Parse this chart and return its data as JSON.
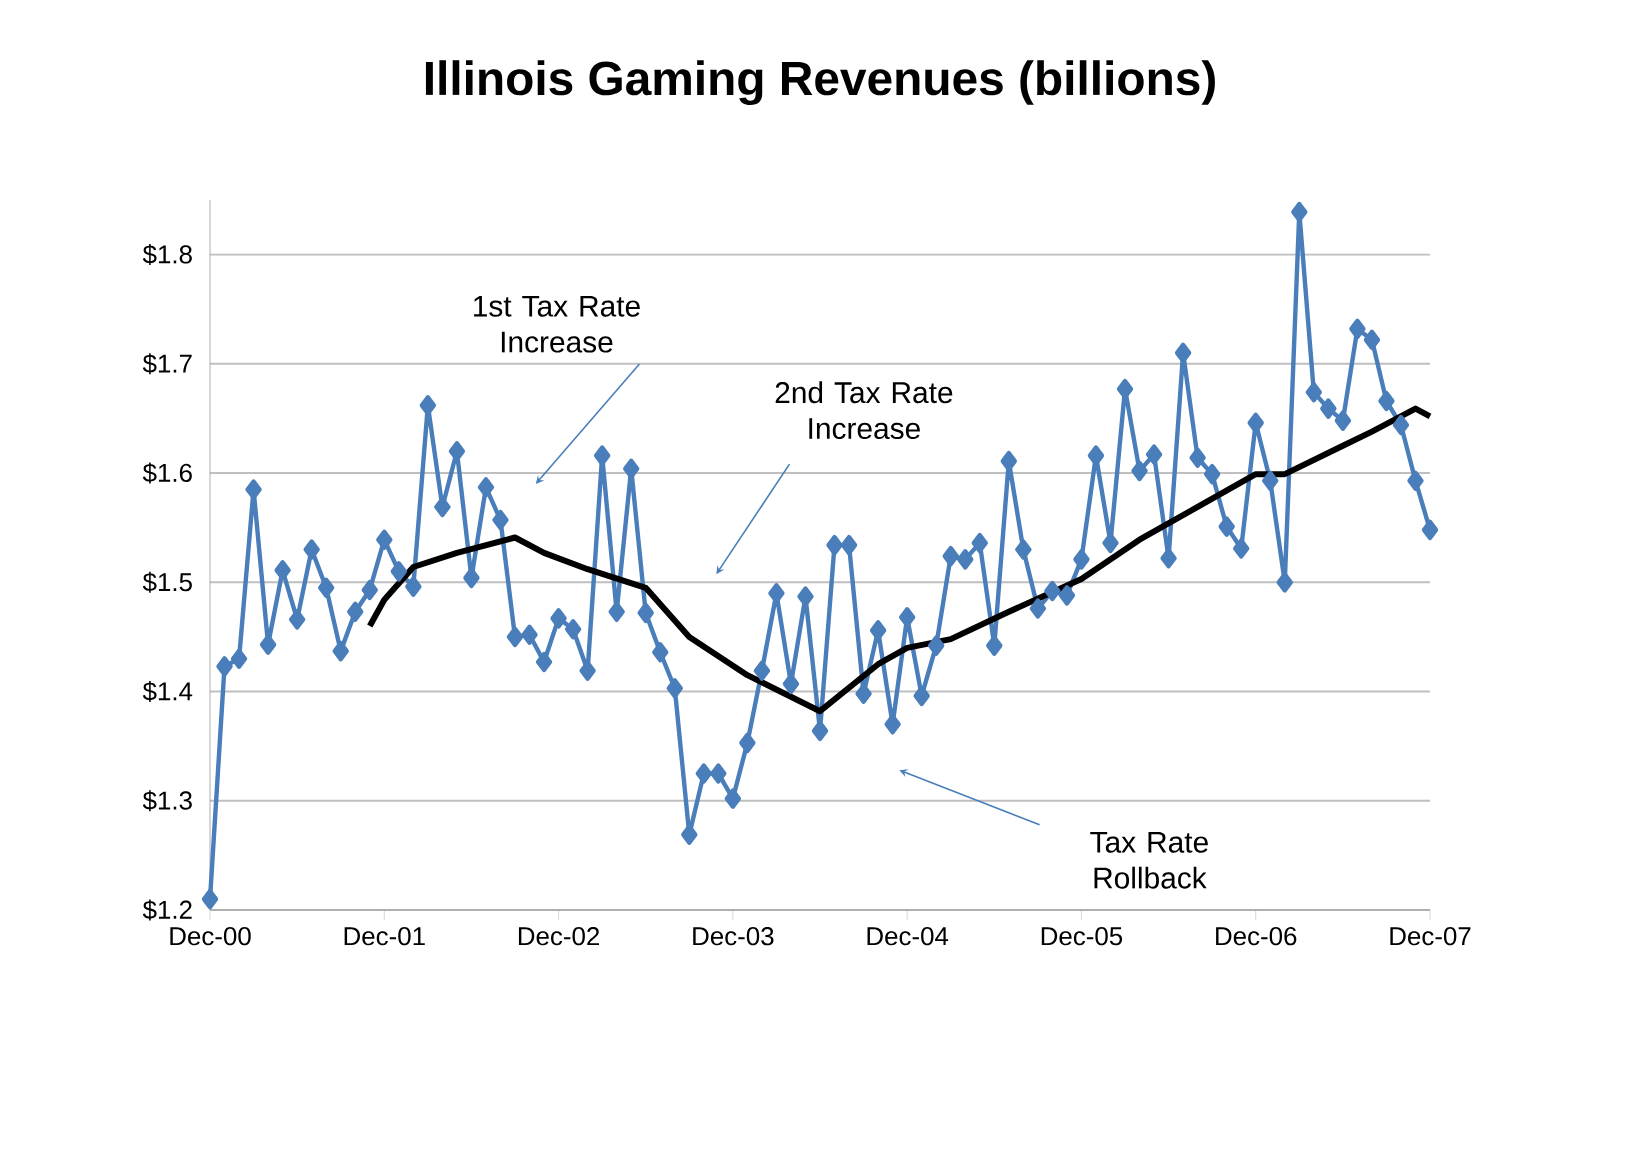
{
  "chart_data": {
    "type": "line",
    "title": "Illinois Gaming Revenues (billions)",
    "x": [
      "2000-12",
      "2001-01",
      "2001-02",
      "2001-03",
      "2001-04",
      "2001-05",
      "2001-06",
      "2001-07",
      "2001-08",
      "2001-09",
      "2001-10",
      "2001-11",
      "2001-12",
      "2002-01",
      "2002-02",
      "2002-03",
      "2002-04",
      "2002-05",
      "2002-06",
      "2002-07",
      "2002-08",
      "2002-09",
      "2002-10",
      "2002-11",
      "2002-12",
      "2003-01",
      "2003-02",
      "2003-03",
      "2003-04",
      "2003-05",
      "2003-06",
      "2003-07",
      "2003-08",
      "2003-09",
      "2003-10",
      "2003-11",
      "2003-12",
      "2004-01",
      "2004-02",
      "2004-03",
      "2004-04",
      "2004-05",
      "2004-06",
      "2004-07",
      "2004-08",
      "2004-09",
      "2004-10",
      "2004-11",
      "2004-12",
      "2005-01",
      "2005-02",
      "2005-03",
      "2005-04",
      "2005-05",
      "2005-06",
      "2005-07",
      "2005-08",
      "2005-09",
      "2005-10",
      "2005-11",
      "2005-12",
      "2006-01",
      "2006-02",
      "2006-03",
      "2006-04",
      "2006-05",
      "2006-06",
      "2006-07",
      "2006-08",
      "2006-09",
      "2006-10",
      "2006-11",
      "2006-12",
      "2007-01",
      "2007-02",
      "2007-03",
      "2007-04",
      "2007-05",
      "2007-06",
      "2007-07",
      "2007-08",
      "2007-09",
      "2007-10",
      "2007-11",
      "2007-12"
    ],
    "xlim": [
      "2000-12",
      "2007-12"
    ],
    "xticks": [
      {
        "value": "2000-12",
        "label": "Dec-00"
      },
      {
        "value": "2001-12",
        "label": "Dec-01"
      },
      {
        "value": "2002-12",
        "label": "Dec-02"
      },
      {
        "value": "2003-12",
        "label": "Dec-03"
      },
      {
        "value": "2004-12",
        "label": "Dec-04"
      },
      {
        "value": "2005-12",
        "label": "Dec-05"
      },
      {
        "value": "2006-12",
        "label": "Dec-06"
      },
      {
        "value": "2007-12",
        "label": "Dec-07"
      }
    ],
    "ylim": [
      1.2,
      1.85
    ],
    "yticks": [
      {
        "value": 1.2,
        "label": "$1.2"
      },
      {
        "value": 1.3,
        "label": "$1.3"
      },
      {
        "value": 1.4,
        "label": "$1.4"
      },
      {
        "value": 1.5,
        "label": "$1.5"
      },
      {
        "value": 1.6,
        "label": "$1.6"
      },
      {
        "value": 1.7,
        "label": "$1.7"
      },
      {
        "value": 1.8,
        "label": "$1.8"
      }
    ],
    "grid": "y",
    "line_style": "solid",
    "series": [
      {
        "color": "#4a7ebb",
        "marker": "diamond",
        "values": [
          1.21,
          1.423,
          1.43,
          1.585,
          1.443,
          1.511,
          1.466,
          1.53,
          1.495,
          1.437,
          1.473,
          1.493,
          1.539,
          1.51,
          1.496,
          1.662,
          1.569,
          1.62,
          1.504,
          1.587,
          1.557,
          1.45,
          1.452,
          1.427,
          1.467,
          1.457,
          1.419,
          1.616,
          1.473,
          1.604,
          1.472,
          1.436,
          1.403,
          1.269,
          1.325,
          1.325,
          1.302,
          1.353,
          1.419,
          1.49,
          1.407,
          1.487,
          1.364,
          1.534,
          1.534,
          1.398,
          1.456,
          1.37,
          1.468,
          1.396,
          1.442,
          1.524,
          1.521,
          1.536,
          1.442,
          1.611,
          1.53,
          1.476,
          1.492,
          1.488,
          1.521,
          1.616,
          1.536,
          1.677,
          1.602,
          1.617,
          1.522,
          1.71,
          1.614,
          1.599,
          1.551,
          1.531,
          1.646,
          1.593,
          1.5,
          1.839,
          1.674,
          1.659,
          1.648,
          1.732,
          1.722,
          1.666,
          1.644,
          1.593,
          1.548
        ]
      },
      {
        "color": "#000000",
        "marker": "none",
        "x": [
          "2001-11",
          "2001-12",
          "2002-02",
          "2002-05",
          "2002-09",
          "2002-11",
          "2003-02",
          "2003-06",
          "2003-09",
          "2004-01",
          "2004-06",
          "2004-10",
          "2004-12",
          "2005-03",
          "2005-07",
          "2005-12",
          "2006-04",
          "2006-08",
          "2006-12",
          "2007-02",
          "2007-06",
          "2007-08",
          "2007-11",
          "2007-12"
        ],
        "values": [
          1.46,
          1.484,
          1.514,
          1.527,
          1.541,
          1.527,
          1.512,
          1.495,
          1.45,
          1.415,
          1.382,
          1.425,
          1.44,
          1.448,
          1.473,
          1.503,
          1.539,
          1.569,
          1.599,
          1.599,
          1.625,
          1.638,
          1.659,
          1.652
        ]
      }
    ],
    "annotations": [
      "1st Tax Rate Increase",
      "2nd Tax Rate Increase",
      "Tax Rate Rollback"
    ]
  }
}
